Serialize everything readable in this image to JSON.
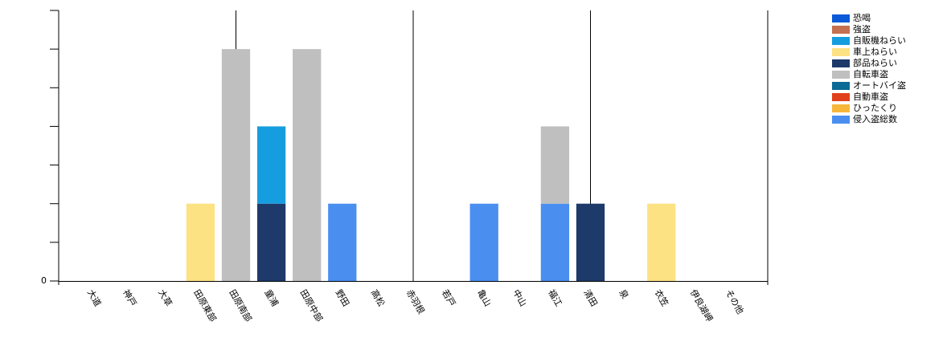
{
  "chart_data": {
    "type": "stacked_bar",
    "categories": [
      "大道",
      "神戸",
      "大草",
      "田原東部",
      "田原南部",
      "童浦",
      "田原中部",
      "野田",
      "高松",
      "赤羽根",
      "若戸",
      "亀山",
      "中山",
      "福江",
      "清田",
      "泉",
      "衣笠",
      "伊良湖岬",
      "その他"
    ],
    "series": [
      {
        "name": "恐喝",
        "color": "#0b5ad8",
        "values": [
          0,
          0,
          0,
          0,
          0,
          0,
          0,
          0,
          0,
          0,
          0,
          0,
          0,
          0,
          0,
          0,
          0,
          0,
          0
        ]
      },
      {
        "name": "強盗",
        "color": "#c5704f",
        "values": [
          0,
          0,
          0,
          0,
          0,
          0,
          0,
          0,
          0,
          0,
          0,
          0,
          0,
          0,
          0,
          0,
          0,
          0,
          0
        ]
      },
      {
        "name": "自販機ねらい",
        "color": "#169ddf",
        "values": [
          0,
          0,
          0,
          0,
          0,
          2,
          0,
          0,
          0,
          0,
          0,
          0,
          0,
          0,
          0,
          0,
          0,
          0,
          0
        ]
      },
      {
        "name": "車上ねらい",
        "color": "#fde284",
        "values": [
          0,
          0,
          0,
          2,
          0,
          0,
          0,
          0,
          0,
          0,
          0,
          0,
          0,
          0,
          0,
          0,
          2,
          0,
          0
        ]
      },
      {
        "name": "部品ねらい",
        "color": "#1d3a6a",
        "values": [
          0,
          0,
          0,
          0,
          0,
          2,
          0,
          0,
          0,
          0,
          0,
          0,
          0,
          0,
          2,
          0,
          0,
          0,
          0
        ]
      },
      {
        "name": "自転車盗",
        "color": "#bfbfbf",
        "values": [
          0,
          0,
          0,
          0,
          6,
          0,
          6,
          0,
          0,
          0,
          0,
          0,
          0,
          2,
          0,
          0,
          0,
          0,
          0
        ]
      },
      {
        "name": "オートバイ盗",
        "color": "#0c6a96",
        "values": [
          0,
          0,
          0,
          0,
          0,
          0,
          0,
          0,
          0,
          0,
          0,
          0,
          0,
          0,
          0,
          0,
          0,
          0,
          0
        ]
      },
      {
        "name": "自動車盗",
        "color": "#e0401b",
        "values": [
          0,
          0,
          0,
          0,
          0,
          0,
          0,
          0,
          0,
          0,
          0,
          0,
          0,
          0,
          0,
          0,
          0,
          0,
          0
        ]
      },
      {
        "name": "ひったくり",
        "color": "#f7b73b",
        "values": [
          0,
          0,
          0,
          0,
          0,
          0,
          0,
          0,
          0,
          0,
          0,
          0,
          0,
          0,
          0,
          0,
          0,
          0,
          0
        ]
      },
      {
        "name": "侵入盗総数",
        "color": "#4a8ff0",
        "values": [
          0,
          0,
          0,
          0,
          0,
          0,
          0,
          2,
          0,
          0,
          0,
          2,
          0,
          2,
          0,
          0,
          0,
          0,
          0
        ]
      }
    ],
    "ylim": [
      0,
      7
    ],
    "yticks": [
      0
    ],
    "yminor_ticks": [
      1,
      2,
      3,
      4,
      5,
      6,
      7
    ],
    "legend": "right"
  }
}
